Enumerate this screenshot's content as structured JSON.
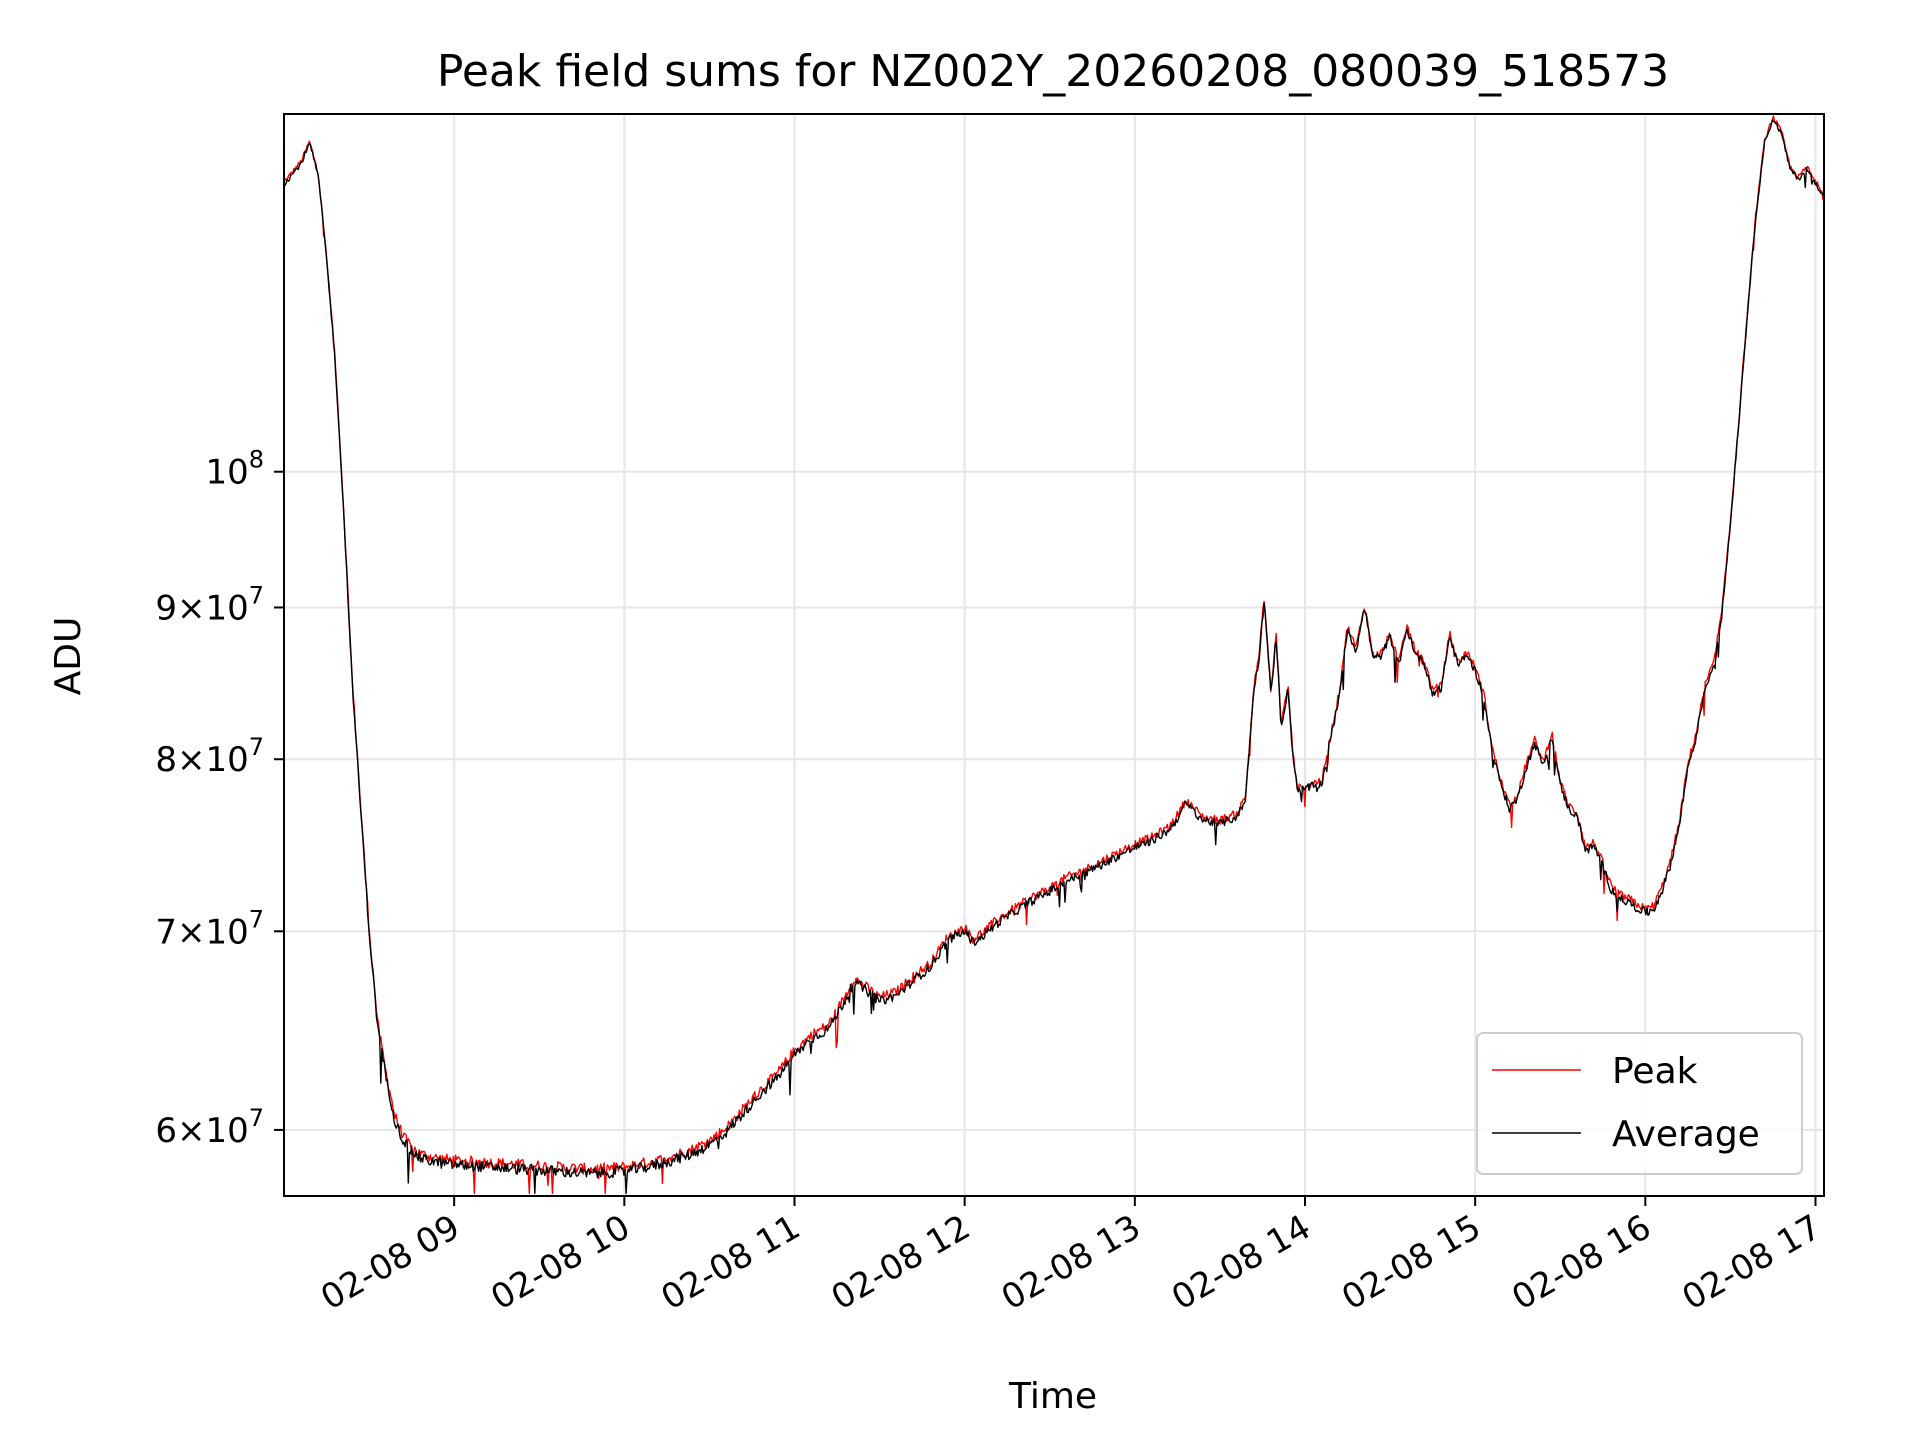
{
  "chart_data": {
    "type": "line",
    "title": "Peak field sums for NZ002Y_20260208_080039_518573",
    "xlabel": "Time",
    "ylabel": "ADU",
    "yscale": "log",
    "grid": true,
    "legend_position": "lower-right",
    "xlim": [
      8.0,
      17.05
    ],
    "ylim": [
      57000000,
      132000000
    ],
    "x_ticks": [
      {
        "x": 9,
        "label": "02-08 09"
      },
      {
        "x": 10,
        "label": "02-08 10"
      },
      {
        "x": 11,
        "label": "02-08 11"
      },
      {
        "x": 12,
        "label": "02-08 12"
      },
      {
        "x": 13,
        "label": "02-08 13"
      },
      {
        "x": 14,
        "label": "02-08 14"
      },
      {
        "x": 15,
        "label": "02-08 15"
      },
      {
        "x": 16,
        "label": "02-08 16"
      },
      {
        "x": 17,
        "label": "02-08 17"
      }
    ],
    "y_ticks": [
      {
        "y": 60000000,
        "mant": "6",
        "exp": "7"
      },
      {
        "y": 70000000,
        "mant": "7",
        "exp": "7"
      },
      {
        "y": 80000000,
        "mant": "8",
        "exp": "7"
      },
      {
        "y": 90000000,
        "mant": "9",
        "exp": "7"
      },
      {
        "y": 100000000,
        "mant": "",
        "exp": "8"
      }
    ],
    "series": [
      {
        "name": "Peak",
        "color": "#ff0000",
        "offset": 200000
      },
      {
        "name": "Average",
        "color": "#000000",
        "offset": 0
      }
    ],
    "x": [
      8.0,
      8.05,
      8.1,
      8.15,
      8.2,
      8.25,
      8.3,
      8.35,
      8.4,
      8.45,
      8.5,
      8.55,
      8.6,
      8.65,
      8.7,
      8.75,
      8.8,
      8.9,
      9.0,
      9.2,
      9.4,
      9.6,
      9.8,
      10.0,
      10.2,
      10.4,
      10.5,
      10.6,
      10.7,
      10.8,
      10.9,
      11.0,
      11.1,
      11.2,
      11.3,
      11.35,
      11.4,
      11.5,
      11.6,
      11.7,
      11.8,
      11.9,
      12.0,
      12.05,
      12.1,
      12.15,
      12.2,
      12.3,
      12.4,
      12.5,
      12.6,
      12.7,
      12.8,
      12.9,
      13.0,
      13.1,
      13.2,
      13.25,
      13.3,
      13.35,
      13.4,
      13.5,
      13.6,
      13.65,
      13.7,
      13.73,
      13.76,
      13.8,
      13.83,
      13.86,
      13.9,
      13.93,
      13.96,
      14.0,
      14.1,
      14.2,
      14.25,
      14.3,
      14.35,
      14.4,
      14.45,
      14.5,
      14.55,
      14.6,
      14.65,
      14.7,
      14.75,
      14.8,
      14.85,
      14.9,
      14.95,
      15.0,
      15.05,
      15.1,
      15.15,
      15.2,
      15.25,
      15.3,
      15.35,
      15.4,
      15.45,
      15.5,
      15.55,
      15.6,
      15.65,
      15.7,
      15.75,
      15.8,
      15.85,
      15.9,
      15.95,
      16.0,
      16.05,
      16.1,
      16.15,
      16.2,
      16.25,
      16.3,
      16.35,
      16.4,
      16.45,
      16.5,
      16.55,
      16.6,
      16.65,
      16.7,
      16.75,
      16.8,
      16.85,
      16.9,
      16.95,
      17.0,
      17.05
    ],
    "y": [
      125000000,
      126000000,
      127000000,
      129000000,
      126000000,
      118000000,
      109000000,
      97000000,
      85000000,
      77000000,
      70000000,
      65000000,
      62500000,
      60500000,
      59500000,
      59000000,
      58700000,
      58500000,
      58400000,
      58300000,
      58200000,
      58100000,
      58000000,
      58100000,
      58400000,
      58900000,
      59300000,
      59900000,
      60800000,
      61700000,
      62500000,
      63600000,
      64400000,
      64900000,
      66400000,
      67300000,
      67000000,
      66300000,
      66600000,
      67400000,
      68100000,
      69500000,
      70000000,
      69400000,
      69700000,
      70100000,
      70500000,
      71100000,
      71700000,
      72200000,
      72800000,
      73200000,
      73700000,
      74200000,
      74700000,
      75100000,
      75700000,
      76400000,
      77300000,
      76800000,
      76300000,
      76100000,
      76500000,
      77500000,
      84500000,
      86500000,
      90500000,
      84000000,
      88000000,
      82000000,
      84500000,
      80000000,
      78000000,
      78200000,
      78500000,
      84000000,
      88500000,
      87000000,
      90000000,
      86500000,
      86700000,
      88000000,
      86000000,
      88500000,
      86800000,
      86200000,
      84200000,
      84500000,
      88000000,
      86000000,
      86800000,
      85700000,
      84000000,
      80500000,
      78500000,
      77000000,
      77600000,
      79500000,
      81000000,
      79600000,
      81500000,
      78400000,
      77000000,
      76500000,
      74500000,
      74800000,
      73600000,
      72300000,
      71800000,
      71600000,
      71300000,
      71000000,
      71200000,
      72300000,
      73800000,
      76000000,
      79500000,
      81500000,
      84500000,
      86000000,
      89500000,
      96000000,
      104000000,
      113000000,
      122000000,
      129000000,
      131500000,
      130000000,
      126500000,
      125500000,
      126500000,
      125000000,
      124000000
    ]
  }
}
